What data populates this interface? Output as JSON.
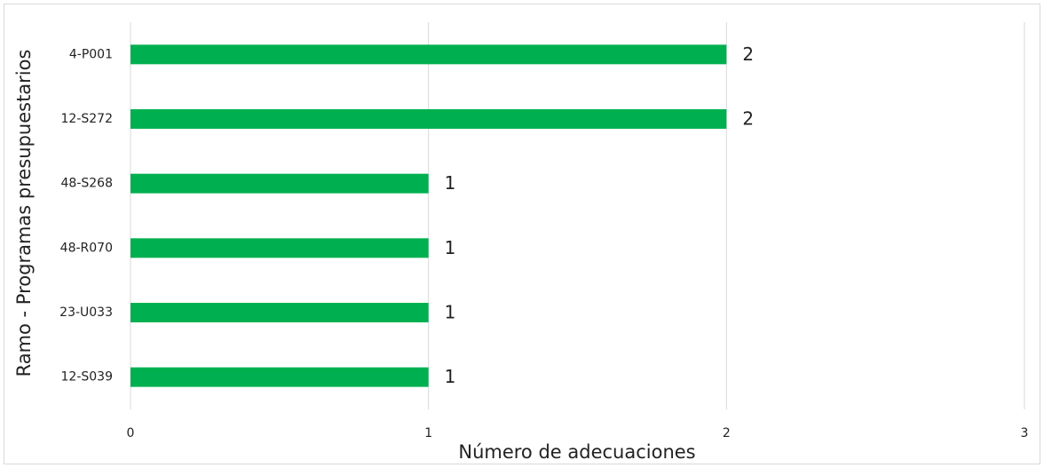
{
  "chart_data": {
    "type": "bar",
    "orientation": "horizontal",
    "x_label": "Número de adecuaciones",
    "y_label": "Ramo - Programas presupuestarios",
    "categories": [
      "4-P001",
      "12-S272",
      "48-S268",
      "48-R070",
      "23-U033",
      "12-S039"
    ],
    "values": [
      2,
      2,
      1,
      1,
      1,
      1
    ],
    "color": "#00b050",
    "xlim": [
      0,
      3
    ],
    "xticks": [
      0,
      1,
      2,
      3
    ],
    "grid": true,
    "data_labels": true
  }
}
